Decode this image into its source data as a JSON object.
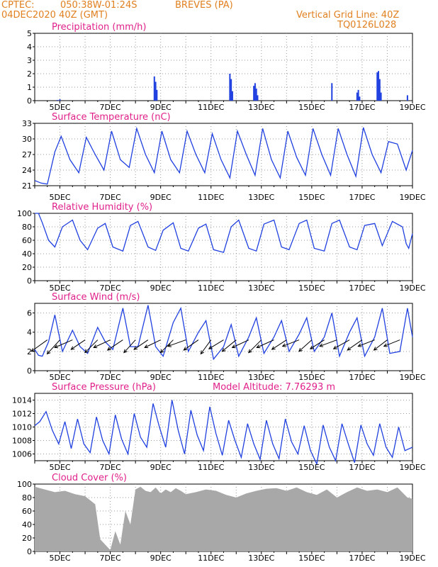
{
  "header": {
    "source": "CPTEC:",
    "coords": "050:38W-01:24S",
    "location": "BREVES (PA)",
    "init": "04DEC2020 40Z (GMT)",
    "grid_note": "Vertical Grid Line: 40Z",
    "run_id": "TQ0126L028"
  },
  "x_axis": {
    "start_day": 4,
    "end_day": 19,
    "labels": [
      "5DEC",
      "7DEC",
      "9DEC",
      "11DEC",
      "13DEC",
      "15DEC",
      "17DEC",
      "19DEC"
    ],
    "label_days": [
      5,
      7,
      9,
      11,
      13,
      15,
      17,
      19
    ]
  },
  "colors": {
    "line": "#2040e0",
    "cloud": "#a8a8a8",
    "title": "#e0208a",
    "header": "#e08020"
  },
  "chart_data": [
    {
      "type": "bar",
      "title": "Precipitation (mm/h)",
      "ylim": [
        0,
        5
      ],
      "yticks": [
        0,
        1,
        2,
        3,
        4,
        5
      ],
      "x": [
        4.9,
        5.0,
        8.75,
        8.8,
        8.85,
        11.75,
        11.8,
        11.85,
        12.7,
        12.75,
        12.8,
        12.85,
        15.8,
        16.8,
        16.85,
        16.9,
        17.6,
        17.65,
        17.7,
        17.75,
        18.8
      ],
      "values": [
        0.05,
        0.1,
        1.8,
        1.4,
        0.8,
        2.0,
        1.6,
        0.7,
        1.1,
        1.3,
        0.9,
        0.4,
        1.3,
        0.6,
        0.8,
        0.3,
        2.1,
        2.2,
        1.6,
        0.6,
        0.4
      ]
    },
    {
      "type": "line",
      "title": "Surface Temperature (nC)",
      "ylim": [
        21,
        33
      ],
      "yticks": [
        21,
        24,
        27,
        30,
        33
      ],
      "x": [
        4.0,
        4.25,
        4.5,
        4.8,
        5.05,
        5.4,
        5.75,
        6.05,
        6.4,
        6.75,
        7.05,
        7.4,
        7.75,
        8.05,
        8.4,
        8.75,
        9.05,
        9.4,
        9.75,
        10.05,
        10.4,
        10.75,
        11.05,
        11.4,
        11.75,
        12.05,
        12.4,
        12.75,
        13.05,
        13.4,
        13.75,
        14.05,
        14.4,
        14.75,
        15.05,
        15.4,
        15.75,
        16.05,
        16.4,
        16.75,
        17.05,
        17.4,
        17.75,
        18.05,
        18.4,
        18.75,
        19.0
      ],
      "values": [
        22.0,
        21.5,
        21.3,
        27.5,
        30.5,
        26.0,
        23.5,
        30.3,
        27.0,
        24.0,
        31.5,
        26.0,
        24.5,
        32.0,
        27.0,
        23.5,
        31.5,
        26.0,
        23.5,
        31.5,
        27.0,
        23.5,
        31.0,
        26.0,
        22.5,
        31.5,
        27.0,
        23.0,
        32.0,
        26.0,
        22.5,
        31.5,
        26.5,
        23.0,
        32.0,
        27.0,
        23.0,
        32.0,
        27.0,
        22.8,
        32.2,
        27.0,
        23.5,
        29.5,
        29.0,
        24.0,
        27.8
      ]
    },
    {
      "type": "line",
      "title": "Relative Humidity (%)",
      "ylim": [
        0,
        100
      ],
      "yticks": [
        0,
        20,
        40,
        60,
        80,
        100
      ],
      "x": [
        4.0,
        4.15,
        4.3,
        4.55,
        4.8,
        5.1,
        5.5,
        5.8,
        6.1,
        6.5,
        6.8,
        7.1,
        7.5,
        7.8,
        8.1,
        8.5,
        8.8,
        9.1,
        9.5,
        9.8,
        10.1,
        10.5,
        10.8,
        11.1,
        11.5,
        11.8,
        12.1,
        12.5,
        12.8,
        13.1,
        13.5,
        13.8,
        14.1,
        14.5,
        14.8,
        15.1,
        15.5,
        15.8,
        16.1,
        16.5,
        16.8,
        17.1,
        17.5,
        17.8,
        18.2,
        18.6,
        18.75,
        18.85,
        19.0
      ],
      "values": [
        100,
        100,
        86,
        60,
        50,
        80,
        90,
        60,
        46,
        78,
        85,
        50,
        44,
        82,
        88,
        50,
        45,
        75,
        86,
        48,
        44,
        78,
        84,
        46,
        42,
        80,
        90,
        48,
        44,
        84,
        90,
        50,
        46,
        85,
        90,
        48,
        44,
        85,
        90,
        50,
        46,
        82,
        85,
        52,
        88,
        80,
        55,
        48,
        70
      ]
    },
    {
      "type": "line",
      "title": "Surface Wind (m/s)",
      "ylim": [
        0,
        7
      ],
      "yticks": [
        0,
        2,
        4,
        6
      ],
      "x": [
        4.0,
        4.15,
        4.3,
        4.55,
        4.8,
        5.1,
        5.5,
        5.8,
        6.1,
        6.5,
        6.8,
        7.1,
        7.5,
        7.8,
        8.1,
        8.5,
        8.8,
        9.1,
        9.5,
        9.8,
        10.1,
        10.5,
        10.8,
        11.1,
        11.5,
        11.8,
        12.1,
        12.5,
        12.8,
        13.1,
        13.5,
        13.8,
        14.1,
        14.5,
        14.8,
        15.1,
        15.5,
        15.8,
        16.1,
        16.5,
        16.8,
        17.1,
        17.5,
        17.8,
        18.1,
        18.5,
        18.8,
        19.0
      ],
      "values": [
        2.2,
        1.6,
        1.5,
        3.0,
        5.8,
        2.0,
        4.2,
        2.5,
        1.8,
        4.5,
        3.0,
        2.2,
        6.5,
        2.5,
        2.5,
        6.8,
        2.5,
        1.5,
        5.0,
        6.5,
        2.0,
        4.0,
        5.2,
        1.2,
        2.5,
        4.8,
        1.5,
        3.5,
        5.5,
        1.8,
        3.5,
        5.2,
        2.0,
        3.8,
        5.5,
        2.0,
        3.5,
        6.0,
        1.5,
        4.0,
        5.5,
        1.5,
        3.5,
        6.5,
        1.8,
        2.0,
        6.5,
        3.5
      ],
      "vectors": {
        "x": [
          4.5,
          5.0,
          5.5,
          6.0,
          6.5,
          7.0,
          7.5,
          8.0,
          8.5,
          9.0,
          9.5,
          10.0,
          10.5,
          11.0,
          11.5,
          12.0,
          12.5,
          13.0,
          13.5,
          14.0,
          14.5,
          15.0,
          15.5,
          16.0,
          16.5,
          17.0,
          17.5,
          18.0,
          18.5
        ],
        "u": [
          -2.5,
          -2,
          -2.8,
          -2.2,
          -2,
          -2.6,
          -2.4,
          -1.8,
          -2.2,
          -2.5,
          -2.0,
          -2.8,
          -2.3,
          -1.6,
          -2.3,
          -2.2,
          -2.6,
          -2.0,
          -2.7,
          -2.3,
          -2.6,
          -2.0,
          -2.2,
          -2.7,
          -2.5,
          -2.3,
          -2.6,
          -2.1,
          -2.5
        ],
        "v": [
          -1.8,
          -2.2,
          -1.2,
          -1.5,
          -2.0,
          -1.2,
          -1.6,
          -2.0,
          -1.5,
          -1.2,
          -2.0,
          -1.0,
          -1.6,
          -2.2,
          -1.4,
          -1.8,
          -1.2,
          -2.0,
          -1.2,
          -1.5,
          -1.0,
          -1.8,
          -1.4,
          -1.0,
          -1.4,
          -1.6,
          -1.0,
          -1.6,
          -1.0
        ]
      }
    },
    {
      "type": "line",
      "title": "Surface Pressure (hPa)",
      "note": "Model Altitude: 7.76293 m",
      "ylim": [
        1005,
        1015
      ],
      "yticks": [
        1006,
        1008,
        1010,
        1012,
        1014
      ],
      "x": [
        4.0,
        4.2,
        4.45,
        4.7,
        4.95,
        5.2,
        5.45,
        5.7,
        5.95,
        6.2,
        6.45,
        6.7,
        6.95,
        7.2,
        7.45,
        7.7,
        7.95,
        8.2,
        8.45,
        8.7,
        8.95,
        9.2,
        9.45,
        9.7,
        9.95,
        10.2,
        10.45,
        10.7,
        10.95,
        11.2,
        11.45,
        11.7,
        11.95,
        12.2,
        12.45,
        12.7,
        12.95,
        13.2,
        13.45,
        13.7,
        13.95,
        14.2,
        14.45,
        14.7,
        14.95,
        15.2,
        15.45,
        15.7,
        15.95,
        16.2,
        16.45,
        16.7,
        16.95,
        17.2,
        17.45,
        17.7,
        17.95,
        18.2,
        18.45,
        18.7,
        19.0
      ],
      "values": [
        1010.2,
        1010.8,
        1012.3,
        1009.5,
        1007.5,
        1010.8,
        1006.8,
        1011.2,
        1007.5,
        1006.2,
        1011.5,
        1008.0,
        1006.0,
        1011.8,
        1008.2,
        1006.0,
        1012.0,
        1008.5,
        1007.0,
        1013.5,
        1010.0,
        1007.0,
        1014.0,
        1009.5,
        1006.0,
        1012.5,
        1008.8,
        1006.5,
        1013.0,
        1009.0,
        1005.8,
        1011.0,
        1008.0,
        1005.5,
        1010.5,
        1007.5,
        1005.2,
        1011.0,
        1007.5,
        1005.3,
        1011.2,
        1007.8,
        1006.0,
        1010.2,
        1006.5,
        1004.5,
        1010.3,
        1007.0,
        1005.0,
        1010.5,
        1007.5,
        1004.7,
        1010.3,
        1007.5,
        1005.8,
        1010.5,
        1007.0,
        1005.5,
        1010.0,
        1006.5,
        1007.0
      ]
    },
    {
      "type": "area",
      "title": "Cloud Cover (%)",
      "ylim": [
        0,
        100
      ],
      "yticks": [
        0,
        20,
        40,
        60,
        80,
        100
      ],
      "x": [
        4.0,
        4.4,
        4.8,
        5.2,
        5.6,
        6.0,
        6.4,
        6.6,
        6.8,
        7.0,
        7.2,
        7.4,
        7.6,
        7.8,
        8.0,
        8.2,
        8.4,
        8.6,
        8.8,
        9.0,
        9.2,
        9.4,
        9.6,
        9.8,
        10.0,
        10.4,
        10.8,
        11.2,
        11.6,
        12.0,
        12.4,
        12.8,
        13.2,
        13.6,
        14.0,
        14.4,
        14.8,
        15.2,
        15.6,
        16.0,
        16.4,
        16.8,
        17.2,
        17.6,
        18.0,
        18.4,
        18.8,
        19.0
      ],
      "values": [
        96,
        92,
        88,
        90,
        85,
        82,
        70,
        18,
        10,
        2,
        30,
        10,
        60,
        40,
        92,
        96,
        90,
        88,
        95,
        86,
        92,
        88,
        94,
        90,
        85,
        88,
        92,
        90,
        84,
        80,
        86,
        90,
        93,
        94,
        90,
        95,
        88,
        84,
        92,
        80,
        88,
        95,
        90,
        92,
        88,
        95,
        80,
        78
      ]
    }
  ]
}
